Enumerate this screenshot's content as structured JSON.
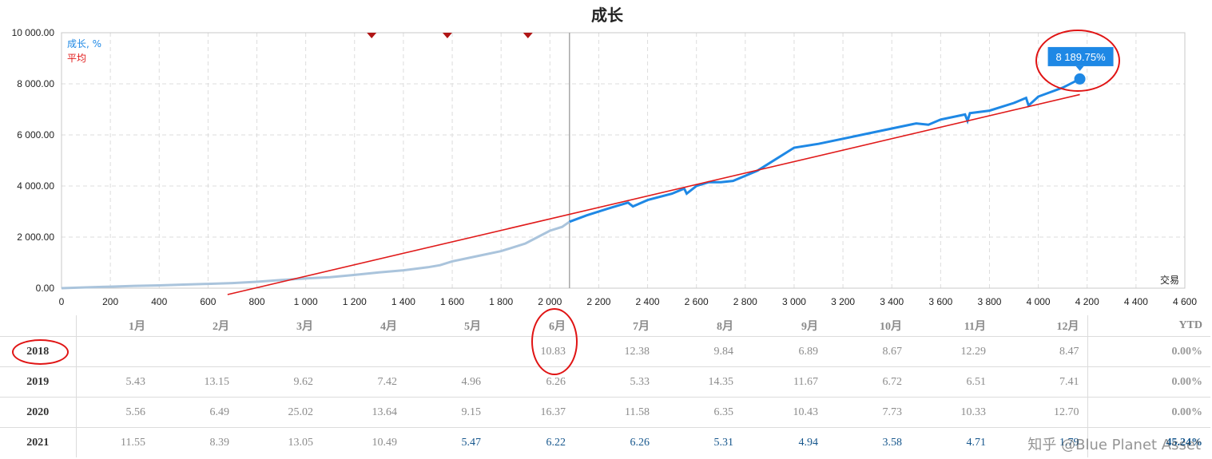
{
  "chart_data": {
    "type": "line",
    "title": "成长",
    "xlabel": "交易",
    "ylabel": "",
    "xlim": [
      0,
      4600
    ],
    "ylim": [
      0,
      10000
    ],
    "x_ticks": [
      "0",
      "200",
      "400",
      "600",
      "800",
      "1 000",
      "1 200",
      "1 400",
      "1 600",
      "1 800",
      "2 000",
      "2 200",
      "2 400",
      "2 600",
      "2 800",
      "3 000",
      "3 200",
      "3 400",
      "3 600",
      "3 800",
      "4 000",
      "4 200",
      "4 400",
      "4 600"
    ],
    "y_ticks": [
      "0.00",
      "2 000.00",
      "4 000.00",
      "6 000.00",
      "8 000.00",
      "10 000.00"
    ],
    "grid": true,
    "legend_position": "top-left",
    "divider_x": 2080,
    "markers_x": [
      1270,
      1580,
      1910
    ],
    "series": [
      {
        "name": "成长, %",
        "color": "#1e88e5",
        "past_color": "#aac4dc",
        "x": [
          0,
          100,
          200,
          300,
          400,
          500,
          600,
          700,
          800,
          900,
          1000,
          1100,
          1200,
          1300,
          1400,
          1500,
          1550,
          1600,
          1700,
          1800,
          1900,
          1950,
          2000,
          2050,
          2080,
          2150,
          2250,
          2320,
          2340,
          2400,
          2500,
          2550,
          2560,
          2600,
          2650,
          2700,
          2750,
          2800,
          2850,
          2900,
          3000,
          3100,
          3200,
          3300,
          3400,
          3500,
          3550,
          3600,
          3700,
          3710,
          3720,
          3800,
          3900,
          3950,
          3960,
          4000,
          4100,
          4170
        ],
        "y": [
          0,
          30,
          60,
          90,
          110,
          140,
          170,
          200,
          250,
          320,
          380,
          430,
          520,
          620,
          700,
          820,
          900,
          1050,
          1250,
          1450,
          1750,
          2000,
          2250,
          2400,
          2600,
          2850,
          3150,
          3350,
          3200,
          3450,
          3700,
          3900,
          3700,
          4000,
          4150,
          4150,
          4200,
          4400,
          4600,
          4900,
          5500,
          5650,
          5850,
          6050,
          6250,
          6450,
          6400,
          6600,
          6800,
          6550,
          6850,
          6950,
          7250,
          7450,
          7150,
          7500,
          7850,
          8189.75
        ]
      },
      {
        "name": "平均",
        "color": "#e01a1a",
        "x": [
          680,
          4170
        ],
        "y": [
          -250,
          7580
        ]
      }
    ],
    "annotations": [
      {
        "text": "8 189.75%",
        "x": 4170,
        "y": 8189.75
      }
    ]
  },
  "table": {
    "headers": [
      "",
      "1月",
      "2月",
      "3月",
      "4月",
      "5月",
      "6月",
      "7月",
      "8月",
      "9月",
      "10月",
      "11月",
      "12月",
      "YTD"
    ],
    "rows": [
      {
        "year": "2018",
        "values": [
          "",
          "",
          "",
          "",
          "",
          "10.83",
          "12.38",
          "9.84",
          "6.89",
          "8.67",
          "12.29",
          "8.47"
        ],
        "ytd": "0.00%",
        "blue_from": 99
      },
      {
        "year": "2019",
        "values": [
          "5.43",
          "13.15",
          "9.62",
          "7.42",
          "4.96",
          "6.26",
          "5.33",
          "14.35",
          "11.67",
          "6.72",
          "6.51",
          "7.41"
        ],
        "ytd": "0.00%",
        "blue_from": 99
      },
      {
        "year": "2020",
        "values": [
          "5.56",
          "6.49",
          "25.02",
          "13.64",
          "9.15",
          "16.37",
          "11.58",
          "6.35",
          "10.43",
          "7.73",
          "10.33",
          "12.70"
        ],
        "ytd": "0.00%",
        "blue_from": 99
      },
      {
        "year": "2021",
        "values": [
          "11.55",
          "8.39",
          "13.05",
          "10.49",
          "5.47",
          "6.22",
          "6.26",
          "5.31",
          "4.94",
          "3.58",
          "4.71",
          "1.79"
        ],
        "ytd": "45.24%",
        "blue_from": 4
      }
    ]
  },
  "watermark": "知乎 @Blue Planet Asset"
}
